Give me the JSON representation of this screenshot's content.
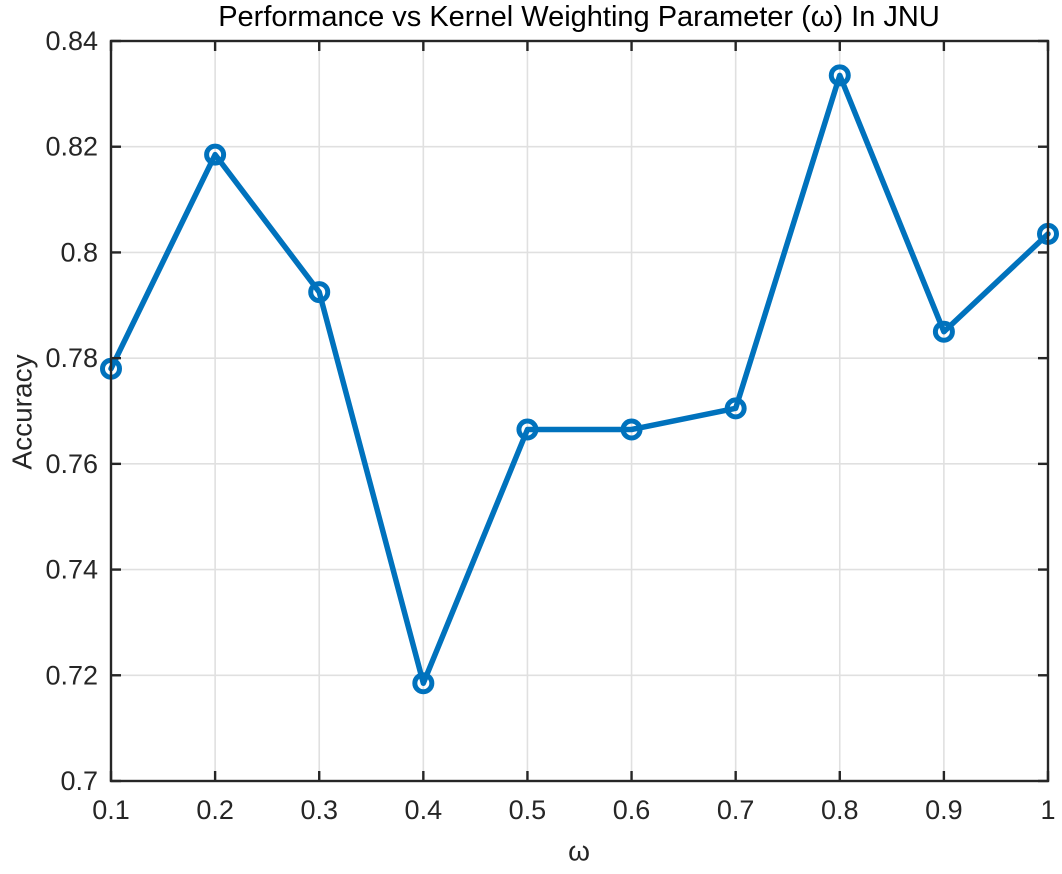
{
  "chart_data": {
    "type": "line",
    "title": "Performance vs Kernel Weighting Parameter (ω) In JNU",
    "xlabel": "ω",
    "ylabel": "Accuracy",
    "x": [
      0.1,
      0.2,
      0.3,
      0.4,
      0.5,
      0.6,
      0.7,
      0.8,
      0.9,
      1.0
    ],
    "series": [
      {
        "name": "Accuracy",
        "values": [
          0.778,
          0.8185,
          0.7925,
          0.7185,
          0.7665,
          0.7665,
          0.7705,
          0.8335,
          0.785,
          0.8035
        ]
      }
    ],
    "xlim": [
      0.1,
      1.0
    ],
    "ylim": [
      0.7,
      0.84
    ],
    "xticks": [
      0.1,
      0.2,
      0.3,
      0.4,
      0.5,
      0.6,
      0.7,
      0.8,
      0.9,
      1.0
    ],
    "xtick_labels": [
      "0.1",
      "0.2",
      "0.3",
      "0.4",
      "0.5",
      "0.6",
      "0.7",
      "0.8",
      "0.9",
      "1"
    ],
    "yticks": [
      0.7,
      0.72,
      0.74,
      0.76,
      0.78,
      0.8,
      0.82,
      0.84
    ],
    "ytick_labels": [
      "0.7",
      "0.72",
      "0.74",
      "0.76",
      "0.78",
      "0.8",
      "0.82",
      "0.84"
    ],
    "grid": true,
    "legend": "none",
    "marker": "circle",
    "line_color": "#0072BD",
    "grid_color": "#e0e0e0",
    "axis_color": "#262626",
    "background": "#ffffff"
  }
}
